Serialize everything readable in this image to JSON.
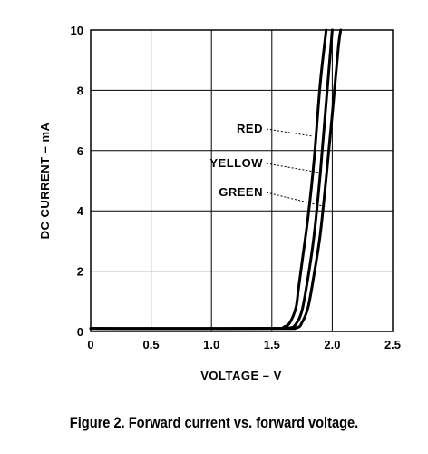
{
  "chart_data": {
    "type": "line",
    "title": "",
    "xlabel": "VOLTAGE – V",
    "ylabel": "DC CURRENT – mA",
    "xlim": [
      0,
      2.5
    ],
    "ylim": [
      0,
      10
    ],
    "xticks": [
      "0",
      "0.5",
      "1.0",
      "1.5",
      "2.0",
      "2.5"
    ],
    "yticks": [
      "0",
      "2",
      "4",
      "6",
      "8",
      "10"
    ],
    "grid": true,
    "series": [
      {
        "name": "RED",
        "x": [
          0,
          1.5,
          1.6,
          1.65,
          1.7,
          1.72,
          1.75,
          1.8,
          1.85,
          1.9,
          1.95
        ],
        "y": [
          0.1,
          0.1,
          0.15,
          0.3,
          0.8,
          1.4,
          2.3,
          3.8,
          5.7,
          8.2,
          10
        ]
      },
      {
        "name": "YELLOW",
        "x": [
          0,
          1.5,
          1.65,
          1.7,
          1.75,
          1.8,
          1.85,
          1.9,
          1.95,
          2.0
        ],
        "y": [
          0.1,
          0.1,
          0.12,
          0.25,
          0.7,
          1.8,
          3.2,
          5.2,
          7.6,
          10
        ]
      },
      {
        "name": "GREEN",
        "x": [
          0,
          1.5,
          1.7,
          1.75,
          1.8,
          1.85,
          1.9,
          1.95,
          2.0,
          2.05,
          2.07
        ],
        "y": [
          0.1,
          0.1,
          0.12,
          0.3,
          0.8,
          1.9,
          3.2,
          5.1,
          7.2,
          9.4,
          10
        ]
      }
    ]
  },
  "caption": "Figure 2. Forward current vs. forward voltage."
}
